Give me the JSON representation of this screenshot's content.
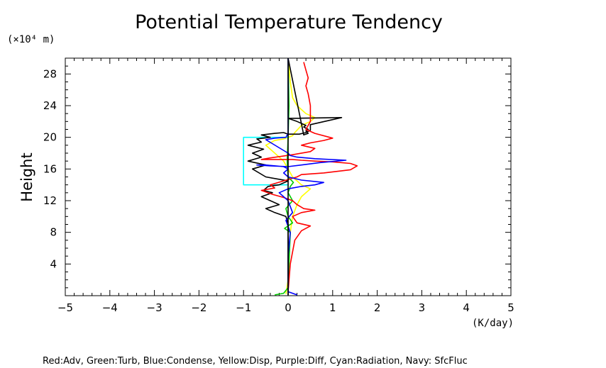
{
  "chart_data": {
    "type": "line",
    "title": "Potential Temperature Tendency",
    "ylabel": "Height",
    "yunit": "(×10⁴ m)",
    "xunit": "(K/day)",
    "legend_text": "Red:Adv, Green:Turb, Blue:Condense, Yellow:Disp, Purple:Diff, Cyan:Radiation, Navy: SfcFluc",
    "xlim": [
      -5,
      5
    ],
    "ylim": [
      0,
      30
    ],
    "xticks": [
      -5,
      -4,
      -3,
      -2,
      -1,
      0,
      1,
      2,
      3,
      4,
      5
    ],
    "xtick_labels": [
      "−5",
      "−4",
      "−3",
      "−2",
      "−1",
      "0",
      "1",
      "2",
      "3",
      "4",
      "5"
    ],
    "yticks": [
      4,
      8,
      12,
      16,
      20,
      24,
      28
    ],
    "ytick_labels": [
      "4",
      "8",
      "12",
      "16",
      "20",
      "24",
      "28"
    ],
    "series": [
      {
        "color": "#ffff00",
        "x": [
          -0.05,
          0.0,
          0.02,
          0.03,
          0.05,
          0.1,
          0.2,
          0.3,
          0.5,
          0.3,
          0.1,
          0.0,
          -0.1,
          -0.3,
          -0.5,
          -0.3,
          -0.1,
          0.0,
          0.1,
          0.15,
          0.3,
          0.5,
          0.6,
          0.4,
          0.2,
          0.1,
          0.05,
          0.0
        ],
        "y": [
          0.2,
          2.0,
          4.0,
          6.0,
          8.0,
          10.0,
          11.5,
          12.5,
          13.5,
          14.0,
          15.0,
          16.0,
          17.0,
          18.0,
          19.0,
          19.6,
          19.8,
          20.0,
          20.2,
          20.6,
          21.5,
          22.0,
          22.5,
          23.0,
          24.0,
          25.0,
          27.0,
          30.0
        ]
      },
      {
        "color": "#00cc00",
        "x": [
          -0.3,
          -0.1,
          0.0,
          0.02,
          0.05,
          -0.08,
          0.1,
          0.0,
          -0.05,
          0.1,
          0.0,
          0.05,
          0.12,
          0.0,
          -0.02,
          0.0,
          0.02,
          0.0
        ],
        "y": [
          0.1,
          0.3,
          1.0,
          4.0,
          8.0,
          8.5,
          9.2,
          10.0,
          11.0,
          12.0,
          13.0,
          13.8,
          14.3,
          15.0,
          17.0,
          20.0,
          24.0,
          30.0
        ]
      },
      {
        "color": "#00ffff",
        "x": [
          0.0,
          -1.0,
          -1.0,
          0.0
        ],
        "y": [
          14.0,
          14.0,
          20.0,
          20.0
        ]
      },
      {
        "color": "#000000",
        "x": [
          0.0,
          0.0,
          -0.05,
          -0.3,
          -0.5,
          -0.2,
          -0.4,
          -0.6,
          -0.35,
          -0.55,
          -0.45,
          -0.2,
          0.0,
          -0.5,
          -0.8,
          -0.5,
          -0.9,
          -0.6,
          -0.8,
          -0.55,
          -0.9,
          -0.6,
          -0.7,
          -0.4,
          -0.6,
          -0.3,
          -0.1,
          0.0,
          0.25,
          0.4,
          0.5,
          0.5,
          0.5,
          1.2,
          0.0,
          0.2,
          0.4,
          0.35,
          0.45,
          0.4,
          0.45,
          0.35,
          0.0
        ],
        "y": [
          0.1,
          9.0,
          10.0,
          10.5,
          11.0,
          11.5,
          12.0,
          12.5,
          13.0,
          13.3,
          13.8,
          14.0,
          14.5,
          15.0,
          16.0,
          16.5,
          17.0,
          17.5,
          18.0,
          18.5,
          19.0,
          19.4,
          19.8,
          20.0,
          20.3,
          20.5,
          20.6,
          20.4,
          20.4,
          20.6,
          20.9,
          21.2,
          21.6,
          22.5,
          22.4,
          22.0,
          21.5,
          21.3,
          21.0,
          20.8,
          20.5,
          20.3,
          30.0
        ]
      },
      {
        "color": "#ff0000",
        "x": [
          0.0,
          0.05,
          0.15,
          0.3,
          0.5,
          0.2,
          0.1,
          0.3,
          0.6,
          0.35,
          0.2,
          0.1,
          -0.1,
          -0.35,
          -0.6,
          -0.3,
          -0.4,
          -0.1,
          0.2,
          0.3,
          0.8,
          1.4,
          1.55,
          1.4,
          1.0,
          0.6,
          0.3,
          0.1,
          -0.6,
          -0.4,
          0.1,
          0.5,
          0.6,
          0.3,
          0.5,
          0.8,
          1.0,
          0.6,
          0.4,
          0.5,
          0.5,
          0.45,
          0.4,
          0.45,
          0.4,
          0.35
        ],
        "y": [
          0.5,
          4.0,
          7.0,
          8.2,
          8.8,
          9.2,
          10.0,
          10.5,
          10.8,
          11.0,
          11.5,
          12.0,
          12.4,
          12.8,
          13.3,
          13.6,
          14.0,
          14.5,
          15.0,
          15.3,
          15.5,
          15.9,
          16.4,
          16.7,
          16.9,
          17.0,
          17.1,
          17.2,
          17.2,
          17.4,
          17.8,
          18.2,
          18.6,
          19.0,
          19.3,
          19.6,
          19.9,
          20.5,
          21.0,
          22.0,
          24.0,
          25.5,
          26.5,
          27.5,
          28.5,
          29.5
        ]
      },
      {
        "color": "#0000ff",
        "x": [
          0.2,
          0.0,
          0.0,
          0.05,
          -0.05,
          0.1,
          0.0,
          -0.2,
          0.0,
          0.3,
          0.6,
          0.8,
          0.3,
          0.0,
          -0.1,
          0.0,
          -0.1,
          -0.5,
          -0.7,
          -0.4,
          0.0,
          0.3,
          0.7,
          1.3,
          0.6,
          0.2,
          0.05,
          0.0,
          -0.5,
          -0.3,
          -0.05,
          0.0,
          0.0
        ],
        "y": [
          0.1,
          0.5,
          5.0,
          8.0,
          9.5,
          10.5,
          12.0,
          13.0,
          13.5,
          13.8,
          14.0,
          14.3,
          14.6,
          15.0,
          15.5,
          16.0,
          16.3,
          16.5,
          16.5,
          16.4,
          16.3,
          16.5,
          16.8,
          17.1,
          17.3,
          17.5,
          17.7,
          18.0,
          19.7,
          19.9,
          20.0,
          20.5,
          30.0
        ]
      }
    ],
    "vertical_line": {
      "x": 0,
      "color": "#000000"
    }
  }
}
